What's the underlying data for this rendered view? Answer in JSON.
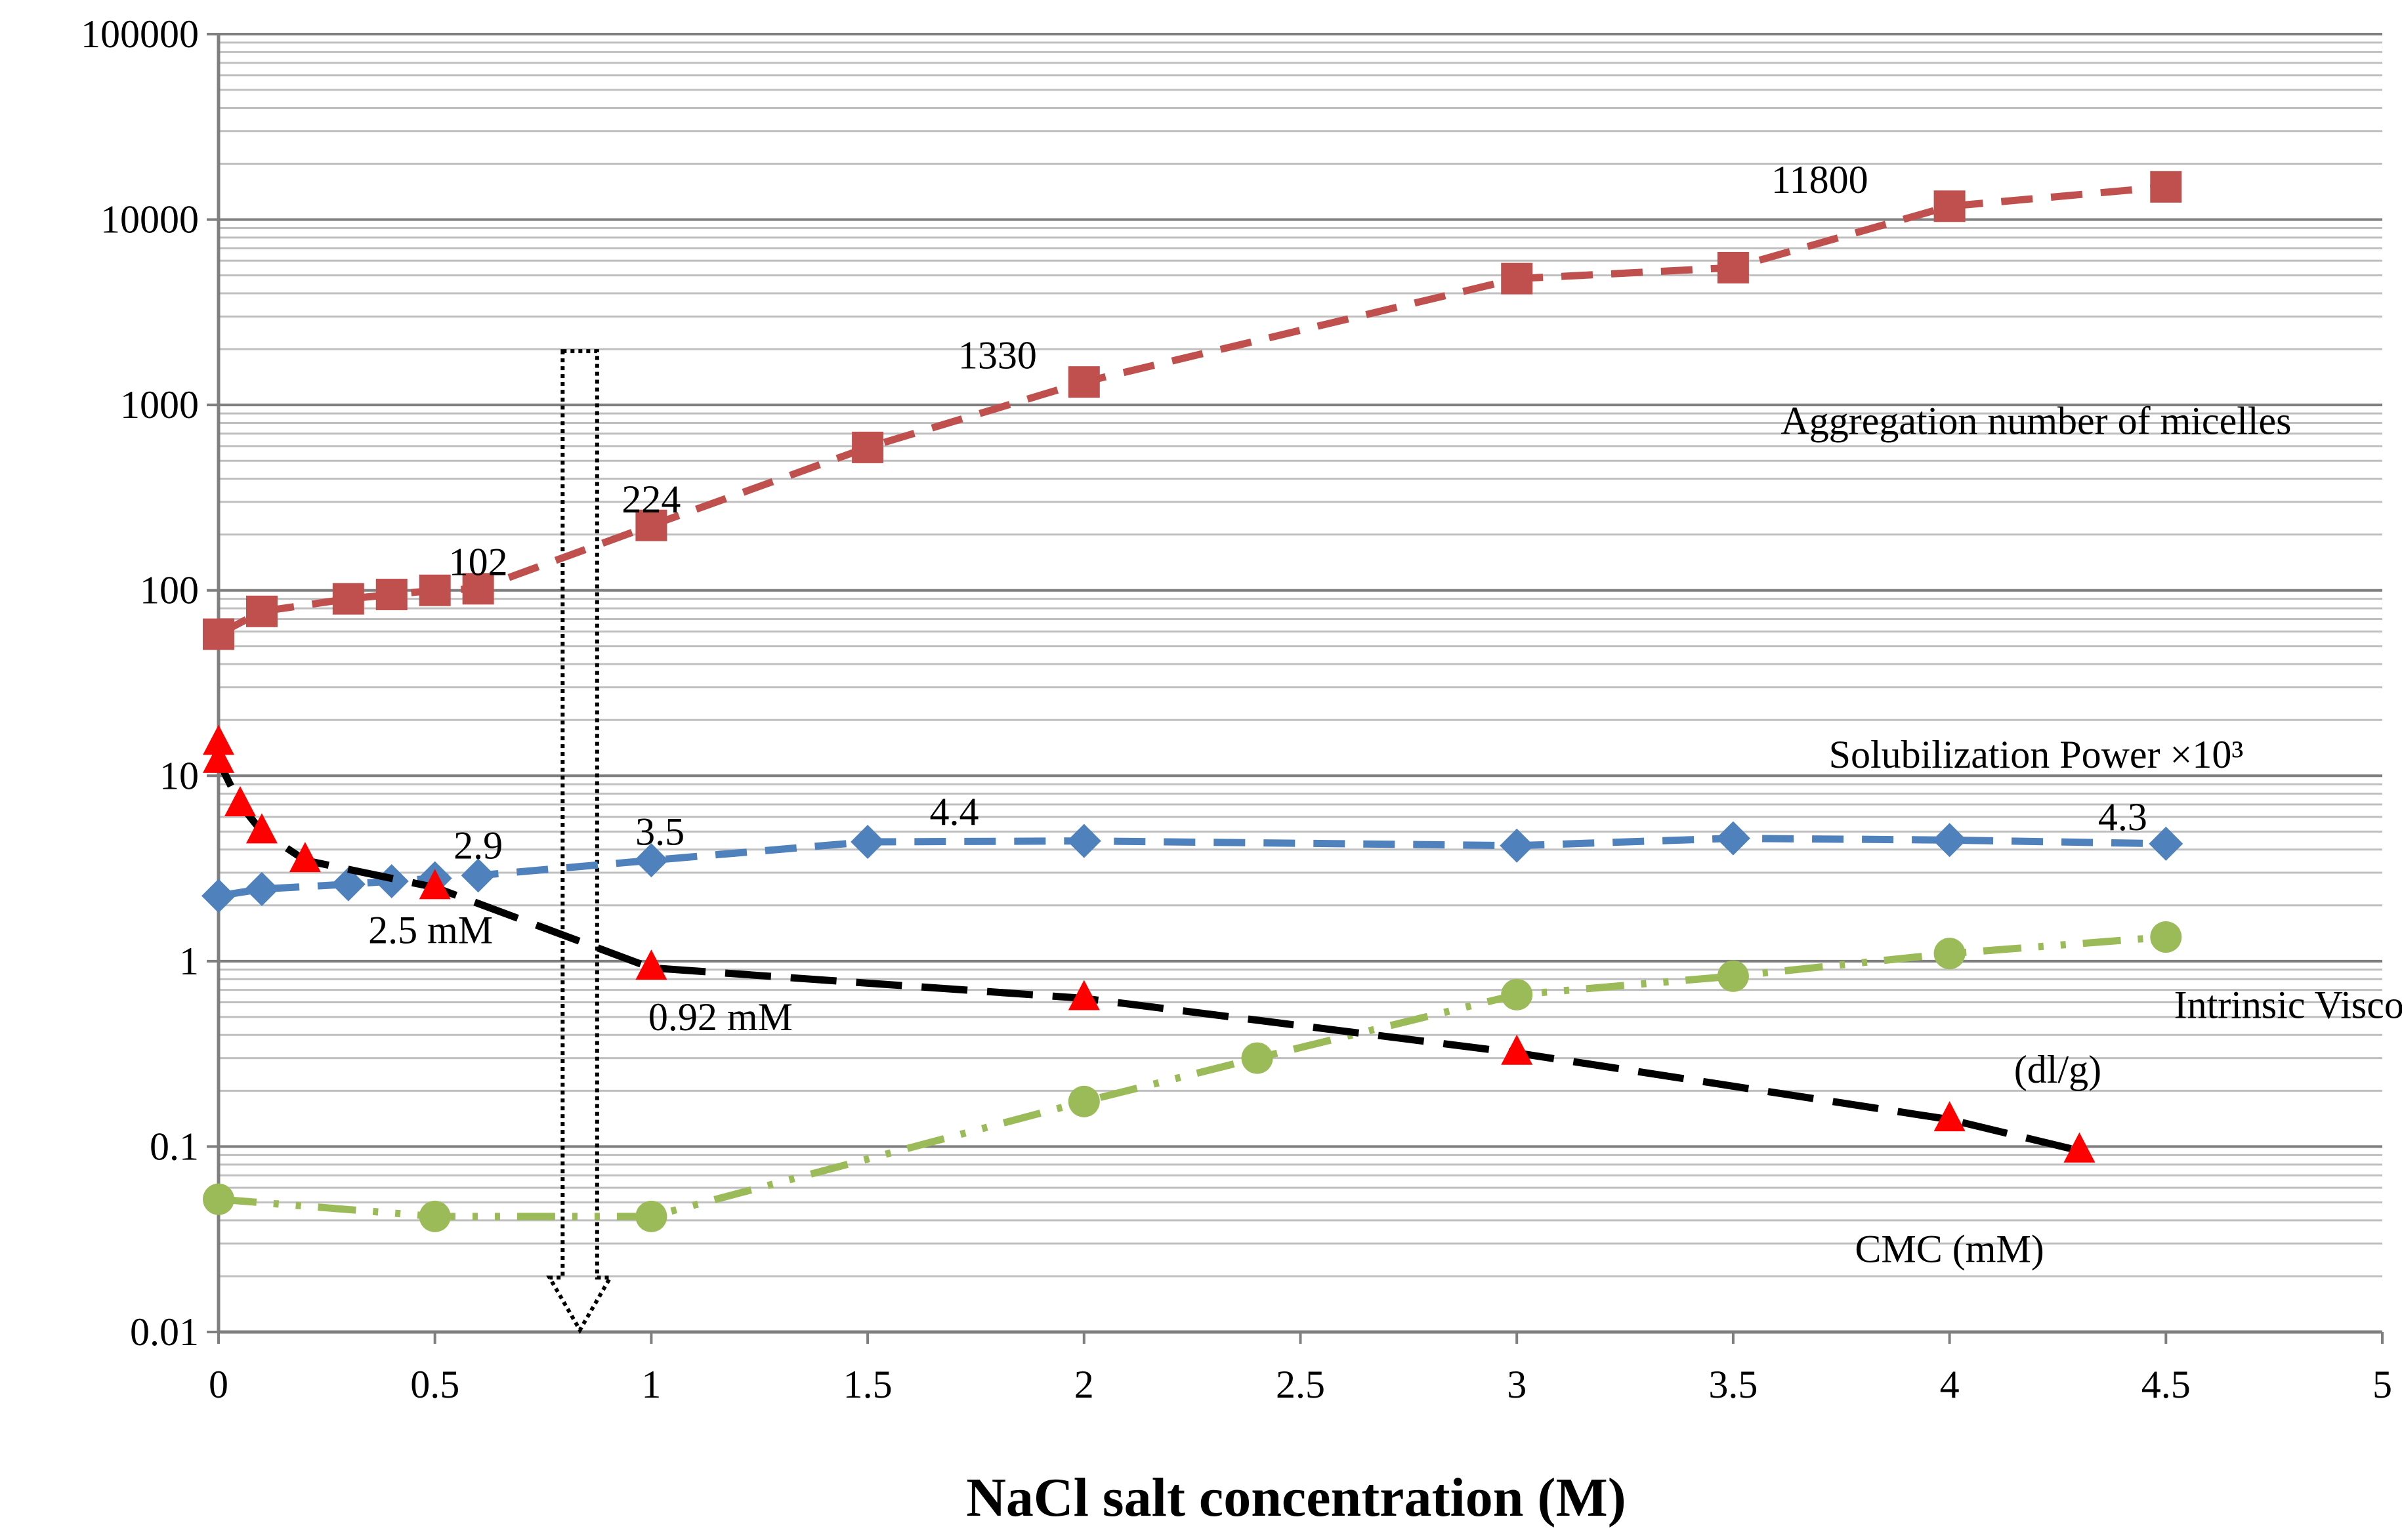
{
  "chart_data": {
    "type": "line",
    "yscale": "log",
    "xlabel": "NaCl salt concentration (M)",
    "ylabel": "",
    "xlim": [
      0,
      5
    ],
    "ylim": [
      0.01,
      100000
    ],
    "grid": true,
    "x_ticks": [
      0,
      0.5,
      1,
      1.5,
      2,
      2.5,
      3,
      3.5,
      4,
      4.5,
      5
    ],
    "x_tick_labels": [
      "0",
      "0.5",
      "1",
      "1.5",
      "2",
      "2.5",
      "3",
      "3.5",
      "4",
      "4.5",
      "5"
    ],
    "y_ticks": [
      0.01,
      0.1,
      1,
      10,
      100,
      1000,
      10000,
      100000
    ],
    "y_tick_labels": [
      "0.01",
      "0.1",
      "1",
      "10",
      "100",
      "1000",
      "10000",
      "100000"
    ],
    "series": [
      {
        "name": "Aggregation number of micelles",
        "color": "#c0504d",
        "marker": "square",
        "dash": "dashed",
        "x": [
          0,
          0.1,
          0.3,
          0.4,
          0.5,
          0.6,
          1,
          1.5,
          2,
          3,
          3.5,
          4,
          4.5
        ],
        "y": [
          58,
          77,
          90,
          95,
          100,
          102,
          224,
          590,
          1330,
          4800,
          5500,
          11800,
          15000
        ]
      },
      {
        "name": "Solubilization Power ×10³",
        "color": "#4f81bd",
        "marker": "diamond",
        "dash": "dashed",
        "x": [
          0,
          0.1,
          0.3,
          0.4,
          0.5,
          0.6,
          1,
          1.5,
          2,
          3,
          3.5,
          4,
          4.5
        ],
        "y": [
          2.25,
          2.45,
          2.6,
          2.7,
          2.8,
          2.9,
          3.5,
          4.4,
          4.45,
          4.2,
          4.6,
          4.5,
          4.3
        ]
      },
      {
        "name": "Intrinsic Viscosity (dl/g)",
        "color": "#9bbb59",
        "marker": "circle",
        "dash": "dash-dot-dot",
        "x": [
          0,
          0.5,
          1,
          2,
          2.4,
          3,
          3.5,
          4,
          4.5
        ],
        "y": [
          0.052,
          0.042,
          0.042,
          0.175,
          0.3,
          0.66,
          0.83,
          1.1,
          1.35
        ]
      },
      {
        "name": "CMC (mM)",
        "color": "#ff0000",
        "line_color": "#000000",
        "marker": "triangle",
        "dash": "long-dash",
        "x": [
          0,
          0,
          0.05,
          0.1,
          0.2,
          0.5,
          1,
          2,
          3,
          4,
          4.3
        ],
        "y": [
          15,
          12,
          7,
          5,
          3.5,
          2.5,
          0.92,
          0.63,
          0.32,
          0.14,
          0.095
        ]
      }
    ],
    "series_labels": [
      {
        "text": "Aggregation number of micelles",
        "x": 4.2,
        "y": 820
      },
      {
        "text": "Solubilization Power ×10³",
        "x": 4.2,
        "y": 13
      },
      {
        "text": "Intrinsic Viscosity",
        "x": 4.85,
        "y": 0.58
      },
      {
        "text": "(dl/g)",
        "x": 4.25,
        "y": 0.26
      },
      {
        "text": "CMC (mM)",
        "x": 4.0,
        "y": 0.028
      }
    ],
    "annotations": [
      {
        "text": "102",
        "x": 0.6,
        "y": 142
      },
      {
        "text": "224",
        "x": 1.0,
        "y": 310
      },
      {
        "text": "1330",
        "x": 1.8,
        "y": 1850
      },
      {
        "text": "11800",
        "x": 3.7,
        "y": 16400
      },
      {
        "text": "2.9",
        "x": 0.6,
        "y": 4.2
      },
      {
        "text": "3.5",
        "x": 1.02,
        "y": 5.0
      },
      {
        "text": "4.4",
        "x": 1.7,
        "y": 6.4
      },
      {
        "text": "4.3",
        "x": 4.4,
        "y": 6.0
      },
      {
        "text": "2.5 mM",
        "x": 0.49,
        "y": 1.47
      },
      {
        "text": "0.92 mM",
        "x": 1.16,
        "y": 0.5
      }
    ],
    "arrow": {
      "x_from": 0.78,
      "x_to": 0.89,
      "y_top": 1950,
      "y_bottom": 0.01
    }
  }
}
